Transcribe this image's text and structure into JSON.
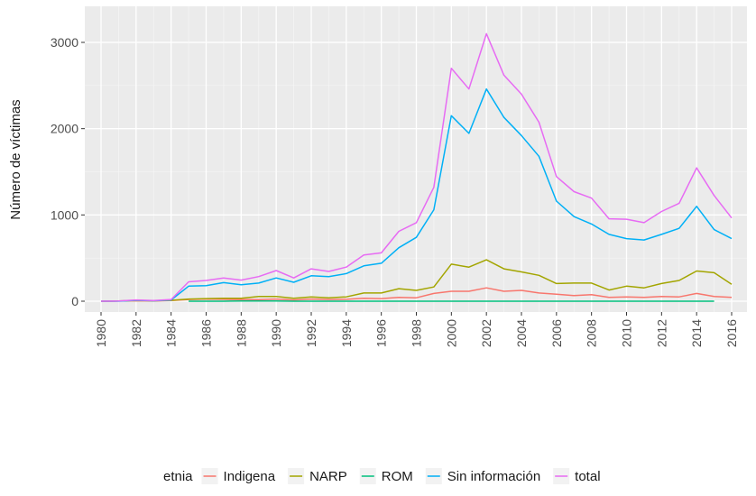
{
  "chart_data": {
    "type": "line",
    "title": "",
    "xlabel": "",
    "ylabel": "Número de víctimas",
    "xlim": [
      1980,
      2016
    ],
    "ylim": [
      0,
      3100
    ],
    "x_ticks": [
      1980,
      1982,
      1984,
      1986,
      1988,
      1990,
      1992,
      1994,
      1996,
      1998,
      2000,
      2002,
      2004,
      2006,
      2008,
      2010,
      2012,
      2014,
      2016
    ],
    "y_ticks": [
      0,
      1000,
      2000,
      3000
    ],
    "grid": true,
    "legend": {
      "title": "etnia",
      "placement": "bottom"
    },
    "series": [
      {
        "name": "Indigena",
        "color": "#F8766D",
        "x": [
          1980,
          1981,
          1982,
          1983,
          1984,
          1985,
          1986,
          1987,
          1988,
          1989,
          1990,
          1991,
          1992,
          1993,
          1994,
          1995,
          1996,
          1997,
          1998,
          1999,
          2000,
          2001,
          2002,
          2003,
          2004,
          2005,
          2006,
          2007,
          2008,
          2009,
          2010,
          2011,
          2012,
          2013,
          2014,
          2015,
          2016
        ],
        "values": [
          0,
          2,
          5,
          3,
          8,
          20,
          25,
          22,
          20,
          18,
          25,
          15,
          25,
          20,
          22,
          35,
          30,
          45,
          40,
          90,
          115,
          115,
          155,
          115,
          125,
          95,
          80,
          65,
          75,
          45,
          50,
          45,
          55,
          50,
          90,
          55,
          45
        ]
      },
      {
        "name": "NARP",
        "color": "#A3A500",
        "x": [
          1980,
          1981,
          1982,
          1983,
          1984,
          1985,
          1986,
          1987,
          1988,
          1989,
          1990,
          1991,
          1992,
          1993,
          1994,
          1995,
          1996,
          1997,
          1998,
          1999,
          2000,
          2001,
          2002,
          2003,
          2004,
          2005,
          2006,
          2007,
          2008,
          2009,
          2010,
          2011,
          2012,
          2013,
          2014,
          2015,
          2016
        ],
        "values": [
          0,
          2,
          8,
          5,
          10,
          25,
          30,
          35,
          35,
          55,
          55,
          35,
          50,
          40,
          50,
          95,
          95,
          145,
          125,
          165,
          430,
          395,
          480,
          375,
          340,
          300,
          205,
          210,
          210,
          130,
          175,
          155,
          205,
          240,
          350,
          330,
          195
        ]
      },
      {
        "name": "ROM",
        "color": "#00BF7D",
        "x": [
          1985,
          1986,
          1987,
          1988,
          1989,
          1990,
          1991,
          1992,
          1993,
          1994,
          1995,
          1996,
          1997,
          1998,
          1999,
          2000,
          2001,
          2002,
          2003,
          2004,
          2005,
          2006,
          2007,
          2008,
          2009,
          2010,
          2011,
          2012,
          2013,
          2014,
          2015
        ],
        "values": [
          0,
          0,
          0,
          2,
          2,
          2,
          0,
          0,
          0,
          0,
          0,
          0,
          0,
          0,
          0,
          0,
          0,
          0,
          0,
          0,
          0,
          0,
          0,
          0,
          0,
          0,
          0,
          0,
          0,
          0,
          0
        ]
      },
      {
        "name": "Sin información",
        "color": "#00B0F6",
        "x": [
          1980,
          1981,
          1982,
          1983,
          1984,
          1985,
          1986,
          1987,
          1988,
          1989,
          1990,
          1991,
          1992,
          1993,
          1994,
          1995,
          1996,
          1997,
          1998,
          1999,
          2000,
          2001,
          2002,
          2003,
          2004,
          2005,
          2006,
          2007,
          2008,
          2009,
          2010,
          2011,
          2012,
          2013,
          2014,
          2015,
          2016
        ],
        "values": [
          0,
          0,
          10,
          5,
          15,
          175,
          180,
          215,
          190,
          210,
          270,
          220,
          295,
          285,
          320,
          410,
          440,
          620,
          740,
          1060,
          2150,
          1945,
          2460,
          2130,
          1920,
          1680,
          1160,
          980,
          895,
          775,
          725,
          710,
          775,
          845,
          1100,
          830,
          725
        ]
      },
      {
        "name": "total",
        "color": "#E76BF3",
        "x": [
          1980,
          1981,
          1982,
          1983,
          1984,
          1985,
          1986,
          1987,
          1988,
          1989,
          1990,
          1991,
          1992,
          1993,
          1994,
          1995,
          1996,
          1997,
          1998,
          1999,
          2000,
          2001,
          2002,
          2003,
          2004,
          2005,
          2006,
          2007,
          2008,
          2009,
          2010,
          2011,
          2012,
          2013,
          2014,
          2015,
          2016
        ],
        "values": [
          0,
          2,
          15,
          8,
          20,
          225,
          240,
          270,
          245,
          285,
          355,
          270,
          375,
          345,
          395,
          535,
          560,
          810,
          910,
          1320,
          2700,
          2460,
          3100,
          2620,
          2400,
          2075,
          1445,
          1270,
          1195,
          955,
          950,
          910,
          1040,
          1135,
          1545,
          1225,
          965
        ]
      }
    ]
  }
}
